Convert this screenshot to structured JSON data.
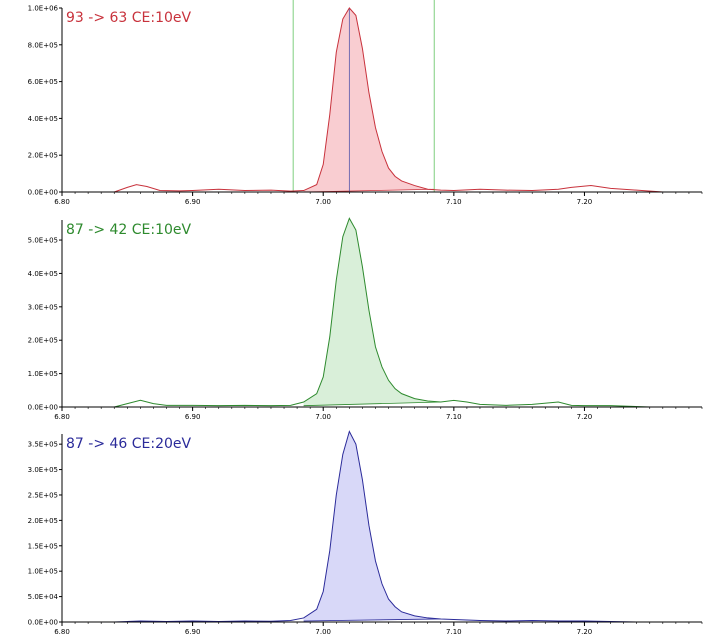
{
  "chart_data": [
    {
      "type": "area",
      "title": "93 -> 63 CE:10eV",
      "color": "#c8323c",
      "fill": "#f9cdd1",
      "xlim": [
        6.8,
        7.29
      ],
      "ylim": [
        0,
        1000000
      ],
      "x_ticks": [
        6.8,
        6.9,
        7.0,
        7.1,
        7.2
      ],
      "x_tick_labels": [
        "6.80",
        "6.90",
        "7.00",
        "7.10",
        "7.20"
      ],
      "y_ticks": [
        0,
        200000,
        400000,
        600000,
        800000,
        1000000
      ],
      "y_tick_labels": [
        "0.0E+00",
        "2.0E+05",
        "4.0E+05",
        "6.0E+05",
        "8.0E+05",
        "1.0E+06"
      ],
      "markers": {
        "start": 6.977,
        "apex": 7.02,
        "end": 7.085,
        "boundary_color": "#7fcf7f",
        "apex_color": "#5555aa"
      },
      "x": [
        6.84,
        6.85,
        6.857,
        6.865,
        6.875,
        6.89,
        6.9,
        6.92,
        6.94,
        6.96,
        6.975,
        6.985,
        6.995,
        7.0,
        7.005,
        7.01,
        7.015,
        7.02,
        7.025,
        7.03,
        7.035,
        7.04,
        7.045,
        7.05,
        7.055,
        7.06,
        7.07,
        7.08,
        7.09,
        7.1,
        7.12,
        7.14,
        7.16,
        7.18,
        7.19,
        7.205,
        7.22,
        7.24,
        7.26
      ],
      "y": [
        0,
        25000,
        40000,
        30000,
        8000,
        6000,
        8000,
        15000,
        8000,
        10000,
        5000,
        8000,
        40000,
        150000,
        420000,
        760000,
        940000,
        1000000,
        960000,
        780000,
        540000,
        350000,
        220000,
        130000,
        85000,
        60000,
        35000,
        15000,
        10000,
        8000,
        15000,
        10000,
        8000,
        15000,
        25000,
        35000,
        20000,
        10000,
        0
      ],
      "baseline": [
        [
          6.985,
          0
        ],
        [
          7.085,
          15000
        ]
      ]
    },
    {
      "type": "area",
      "title": "87 -> 42 CE:10eV",
      "color": "#2e8a2e",
      "fill": "#d9efd9",
      "xlim": [
        6.8,
        7.29
      ],
      "ylim": [
        0,
        560000
      ],
      "x_ticks": [
        6.8,
        6.9,
        7.0,
        7.1,
        7.2
      ],
      "x_tick_labels": [
        "6.80",
        "6.90",
        "7.00",
        "7.10",
        "7.20"
      ],
      "y_ticks": [
        0,
        100000,
        200000,
        300000,
        400000,
        500000
      ],
      "y_tick_labels": [
        "0.0E+00",
        "1.0E+05",
        "2.0E+05",
        "3.0E+05",
        "4.0E+05",
        "5.0E+05"
      ],
      "x": [
        6.84,
        6.85,
        6.86,
        6.87,
        6.88,
        6.9,
        6.92,
        6.94,
        6.96,
        6.975,
        6.985,
        6.995,
        7.0,
        7.005,
        7.01,
        7.015,
        7.02,
        7.025,
        7.03,
        7.035,
        7.04,
        7.045,
        7.05,
        7.055,
        7.06,
        7.07,
        7.08,
        7.09,
        7.1,
        7.11,
        7.12,
        7.14,
        7.16,
        7.18,
        7.19,
        7.2,
        7.22,
        7.25
      ],
      "y": [
        0,
        10000,
        20000,
        10000,
        5000,
        5000,
        4000,
        5000,
        4000,
        5000,
        15000,
        40000,
        90000,
        210000,
        380000,
        510000,
        565000,
        530000,
        420000,
        290000,
        180000,
        120000,
        80000,
        55000,
        40000,
        25000,
        18000,
        15000,
        20000,
        15000,
        8000,
        5000,
        8000,
        15000,
        5000,
        4000,
        4000,
        0
      ],
      "baseline": [
        [
          6.985,
          4000
        ],
        [
          7.09,
          15000
        ]
      ]
    },
    {
      "type": "area",
      "title": "87 -> 46 CE:20eV",
      "color": "#2b2b9a",
      "fill": "#d8d8f8",
      "xlim": [
        6.8,
        7.29
      ],
      "ylim": [
        0,
        370000
      ],
      "x_ticks": [
        6.8,
        6.9,
        7.0,
        7.1,
        7.2
      ],
      "x_tick_labels": [
        "6.80",
        "6.90",
        "7.00",
        "7.10",
        "7.20"
      ],
      "y_ticks": [
        0,
        50000,
        100000,
        150000,
        200000,
        250000,
        300000,
        350000
      ],
      "y_tick_labels": [
        "0.0E+00",
        "5.0E+04",
        "1.0E+05",
        "1.5E+05",
        "2.0E+05",
        "2.5E+05",
        "3.0E+05",
        "3.5E+05"
      ],
      "x": [
        6.84,
        6.86,
        6.88,
        6.9,
        6.92,
        6.94,
        6.96,
        6.975,
        6.985,
        6.995,
        7.0,
        7.005,
        7.01,
        7.015,
        7.02,
        7.025,
        7.03,
        7.035,
        7.04,
        7.045,
        7.05,
        7.055,
        7.06,
        7.07,
        7.08,
        7.09,
        7.1,
        7.12,
        7.14,
        7.16,
        7.18,
        7.2,
        7.22,
        7.24
      ],
      "y": [
        0,
        2000,
        1000,
        2000,
        1000,
        2000,
        1500,
        3000,
        8000,
        25000,
        60000,
        140000,
        250000,
        330000,
        375000,
        350000,
        280000,
        190000,
        120000,
        75000,
        45000,
        30000,
        20000,
        12000,
        8000,
        6000,
        5000,
        3000,
        2000,
        3000,
        2000,
        2000,
        1000,
        0
      ],
      "baseline": [
        [
          6.985,
          2000
        ],
        [
          7.09,
          6000
        ]
      ]
    }
  ]
}
